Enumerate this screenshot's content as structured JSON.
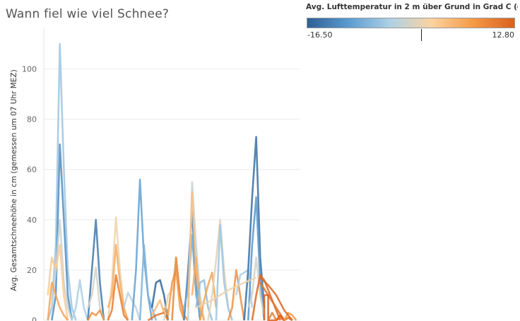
{
  "title": "Wann fiel wie viel Schnee?",
  "legend": {
    "title": "Avg. Lufttemperatur in 2 m über Grund in Grad C (gemess...",
    "min_label": "-16.50",
    "max_label": "12.80",
    "min_value": -16.5,
    "max_value": 12.8,
    "marker_value": 0,
    "colors": [
      "#2f5f94",
      "#5b9bd0",
      "#aed1e6",
      "#fbd3a0",
      "#f59a45",
      "#d9611f"
    ]
  },
  "chart_data": {
    "type": "line",
    "title": "Wann fiel wie viel Schnee?",
    "xlabel": "",
    "ylabel": "Avg. Gesamtschneehöhe in cm (gemessen um 07 Uhr MEZ)",
    "ylim": [
      0,
      110
    ],
    "yticks": [
      0,
      20,
      40,
      60,
      80,
      100
    ],
    "grid": true,
    "color_encoding": "Avg. Lufttemperatur in 2 m über Grund in Grad C",
    "series": [
      {
        "temp": -6,
        "points": [
          [
            1,
            0
          ],
          [
            2,
            5
          ],
          [
            3,
            30
          ],
          [
            4,
            110
          ],
          [
            5,
            60
          ],
          [
            6,
            20
          ],
          [
            7,
            5
          ],
          [
            8,
            0
          ]
        ]
      },
      {
        "temp": -12,
        "points": [
          [
            2,
            0
          ],
          [
            3,
            10
          ],
          [
            4,
            70
          ],
          [
            5,
            40
          ],
          [
            6,
            10
          ],
          [
            7,
            0
          ]
        ]
      },
      {
        "temp": -3,
        "points": [
          [
            2,
            5
          ],
          [
            3,
            20
          ],
          [
            4,
            40
          ],
          [
            5,
            15
          ],
          [
            6,
            5
          ],
          [
            7,
            0
          ]
        ]
      },
      {
        "temp": 2,
        "points": [
          [
            1,
            10
          ],
          [
            2,
            25
          ],
          [
            3,
            20
          ],
          [
            4,
            30
          ],
          [
            5,
            10
          ],
          [
            6,
            0
          ]
        ]
      },
      {
        "temp": 6,
        "points": [
          [
            1,
            0
          ],
          [
            2,
            15
          ],
          [
            3,
            10
          ],
          [
            4,
            5
          ],
          [
            5,
            2
          ],
          [
            6,
            0
          ]
        ]
      },
      {
        "temp": -5,
        "points": [
          [
            7,
            0
          ],
          [
            8,
            5
          ],
          [
            9,
            16
          ],
          [
            10,
            5
          ],
          [
            11,
            0
          ]
        ]
      },
      {
        "temp": -14,
        "points": [
          [
            11,
            0
          ],
          [
            12,
            20
          ],
          [
            13,
            40
          ],
          [
            14,
            15
          ],
          [
            15,
            0
          ]
        ]
      },
      {
        "temp": -2,
        "points": [
          [
            11,
            5
          ],
          [
            12,
            10
          ],
          [
            13,
            21
          ],
          [
            14,
            5
          ],
          [
            15,
            0
          ]
        ]
      },
      {
        "temp": 8,
        "points": [
          [
            11,
            0
          ],
          [
            12,
            3
          ],
          [
            13,
            2
          ],
          [
            14,
            4
          ],
          [
            15,
            0
          ]
        ]
      },
      {
        "temp": 0,
        "points": [
          [
            16,
            0
          ],
          [
            17,
            15
          ],
          [
            18,
            41
          ],
          [
            19,
            20
          ],
          [
            20,
            5
          ],
          [
            21,
            0
          ]
        ]
      },
      {
        "temp": 5,
        "points": [
          [
            16,
            5
          ],
          [
            17,
            10
          ],
          [
            18,
            30
          ],
          [
            19,
            15
          ],
          [
            20,
            5
          ],
          [
            21,
            0
          ]
        ]
      },
      {
        "temp": 10,
        "points": [
          [
            16,
            0
          ],
          [
            17,
            4
          ],
          [
            18,
            18
          ],
          [
            19,
            10
          ],
          [
            20,
            2
          ],
          [
            21,
            0
          ]
        ]
      },
      {
        "temp": -4,
        "points": [
          [
            20,
            5
          ],
          [
            21,
            11
          ],
          [
            22,
            8
          ],
          [
            23,
            5
          ],
          [
            24,
            0
          ]
        ]
      },
      {
        "temp": -10,
        "points": [
          [
            22,
            0
          ],
          [
            23,
            20
          ],
          [
            24,
            56
          ],
          [
            25,
            25
          ],
          [
            26,
            10
          ],
          [
            27,
            0
          ]
        ]
      },
      {
        "temp": -8,
        "points": [
          [
            24,
            0
          ],
          [
            25,
            30
          ],
          [
            26,
            10
          ],
          [
            27,
            5
          ],
          [
            28,
            0
          ]
        ]
      },
      {
        "temp": -16,
        "points": [
          [
            27,
            5
          ],
          [
            28,
            15
          ],
          [
            29,
            16
          ],
          [
            30,
            10
          ],
          [
            31,
            0
          ]
        ]
      },
      {
        "temp": 4,
        "points": [
          [
            27,
            2
          ],
          [
            28,
            5
          ],
          [
            29,
            8
          ],
          [
            30,
            3
          ],
          [
            31,
            0
          ]
        ]
      },
      {
        "temp": 11,
        "points": [
          [
            26,
            0
          ],
          [
            28,
            2
          ],
          [
            30,
            3
          ],
          [
            31,
            0
          ]
        ]
      },
      {
        "temp": -1,
        "points": [
          [
            30,
            0
          ],
          [
            31,
            10
          ],
          [
            32,
            12
          ],
          [
            33,
            25
          ],
          [
            34,
            10
          ],
          [
            35,
            0
          ]
        ]
      },
      {
        "temp": 7,
        "points": [
          [
            30,
            5
          ],
          [
            31,
            2
          ],
          [
            32,
            15
          ],
          [
            33,
            20
          ],
          [
            34,
            5
          ],
          [
            35,
            0
          ]
        ]
      },
      {
        "temp": 9,
        "points": [
          [
            32,
            0
          ],
          [
            33,
            25
          ],
          [
            34,
            10
          ],
          [
            35,
            2
          ],
          [
            36,
            0
          ]
        ]
      },
      {
        "temp": -13,
        "points": [
          [
            35,
            0
          ],
          [
            36,
            20
          ],
          [
            37,
            43
          ],
          [
            38,
            15
          ],
          [
            39,
            0
          ]
        ]
      },
      {
        "temp": -9,
        "points": [
          [
            35,
            5
          ],
          [
            36,
            12
          ],
          [
            37,
            34
          ],
          [
            38,
            10
          ],
          [
            39,
            2
          ]
        ]
      },
      {
        "temp": -3,
        "points": [
          [
            36,
            0
          ],
          [
            37,
            55
          ],
          [
            38,
            30
          ],
          [
            39,
            10
          ],
          [
            40,
            0
          ]
        ]
      },
      {
        "temp": 3,
        "points": [
          [
            36,
            5
          ],
          [
            37,
            51
          ],
          [
            38,
            20
          ],
          [
            39,
            5
          ],
          [
            40,
            0
          ]
        ]
      },
      {
        "temp": 5,
        "points": [
          [
            37,
            10
          ],
          [
            38,
            25
          ],
          [
            39,
            5
          ],
          [
            40,
            0
          ]
        ]
      },
      {
        "temp": -7,
        "points": [
          [
            38,
            5
          ],
          [
            39,
            15
          ],
          [
            40,
            16
          ],
          [
            41,
            5
          ],
          [
            42,
            0
          ]
        ]
      },
      {
        "temp": 6,
        "points": [
          [
            39,
            0
          ],
          [
            40,
            8
          ],
          [
            41,
            14
          ],
          [
            42,
            19
          ],
          [
            43,
            5
          ]
        ]
      },
      {
        "temp": -1,
        "points": [
          [
            41,
            0
          ],
          [
            42,
            10
          ],
          [
            43,
            24
          ],
          [
            44,
            40
          ],
          [
            45,
            20
          ],
          [
            46,
            5
          ],
          [
            47,
            0
          ]
        ]
      },
      {
        "temp": -6,
        "points": [
          [
            43,
            0
          ],
          [
            44,
            38
          ],
          [
            45,
            15
          ],
          [
            46,
            5
          ],
          [
            47,
            0
          ]
        ]
      },
      {
        "temp": 8,
        "points": [
          [
            46,
            0
          ],
          [
            47,
            5
          ],
          [
            48,
            20
          ],
          [
            49,
            10
          ],
          [
            50,
            0
          ]
        ]
      },
      {
        "temp": -5,
        "points": [
          [
            48,
            10
          ],
          [
            49,
            18
          ],
          [
            50,
            19
          ],
          [
            51,
            20
          ],
          [
            52,
            5
          ]
        ]
      },
      {
        "temp": -15,
        "points": [
          [
            50,
            0
          ],
          [
            51,
            20
          ],
          [
            52,
            49
          ],
          [
            53,
            73
          ],
          [
            54,
            25
          ],
          [
            55,
            5
          ]
        ]
      },
      {
        "temp": -11,
        "points": [
          [
            51,
            0
          ],
          [
            52,
            30
          ],
          [
            53,
            49
          ],
          [
            54,
            15
          ],
          [
            55,
            0
          ]
        ]
      },
      {
        "temp": -2,
        "points": [
          [
            51,
            5
          ],
          [
            52,
            10
          ],
          [
            53,
            25
          ],
          [
            54,
            10
          ],
          [
            55,
            2
          ]
        ]
      },
      {
        "temp": 0,
        "points": [
          [
            38,
            5
          ],
          [
            42,
            8
          ],
          [
            46,
            12
          ],
          [
            50,
            15
          ],
          [
            53,
            17
          ]
        ]
      },
      {
        "temp": 12,
        "points": [
          [
            52,
            0
          ],
          [
            53,
            10
          ],
          [
            54,
            18
          ],
          [
            55,
            16
          ],
          [
            57,
            8
          ],
          [
            59,
            0
          ]
        ]
      },
      {
        "temp": 11,
        "points": [
          [
            54,
            15
          ],
          [
            56,
            10
          ],
          [
            58,
            5
          ],
          [
            60,
            0
          ]
        ]
      },
      {
        "temp": 12.8,
        "points": [
          [
            55,
            0
          ],
          [
            55,
            10
          ],
          [
            56,
            10
          ],
          [
            56,
            0
          ],
          [
            58,
            0
          ],
          [
            59,
            2
          ],
          [
            60,
            0
          ]
        ]
      },
      {
        "temp": 10,
        "points": [
          [
            56,
            0
          ],
          [
            57,
            3
          ],
          [
            58,
            0
          ],
          [
            59,
            1
          ],
          [
            60,
            0
          ]
        ]
      },
      {
        "temp": 12,
        "points": [
          [
            58,
            0
          ],
          [
            59,
            2
          ],
          [
            60,
            0
          ],
          [
            61,
            1
          ],
          [
            62,
            0
          ]
        ]
      },
      {
        "temp": 7,
        "points": [
          [
            60,
            0
          ],
          [
            61,
            3
          ],
          [
            62,
            2
          ],
          [
            63,
            0
          ]
        ]
      },
      {
        "temp": 12,
        "points": [
          [
            54,
            17
          ],
          [
            56,
            14
          ],
          [
            58,
            10
          ],
          [
            60,
            4
          ],
          [
            62,
            0
          ]
        ]
      }
    ]
  }
}
